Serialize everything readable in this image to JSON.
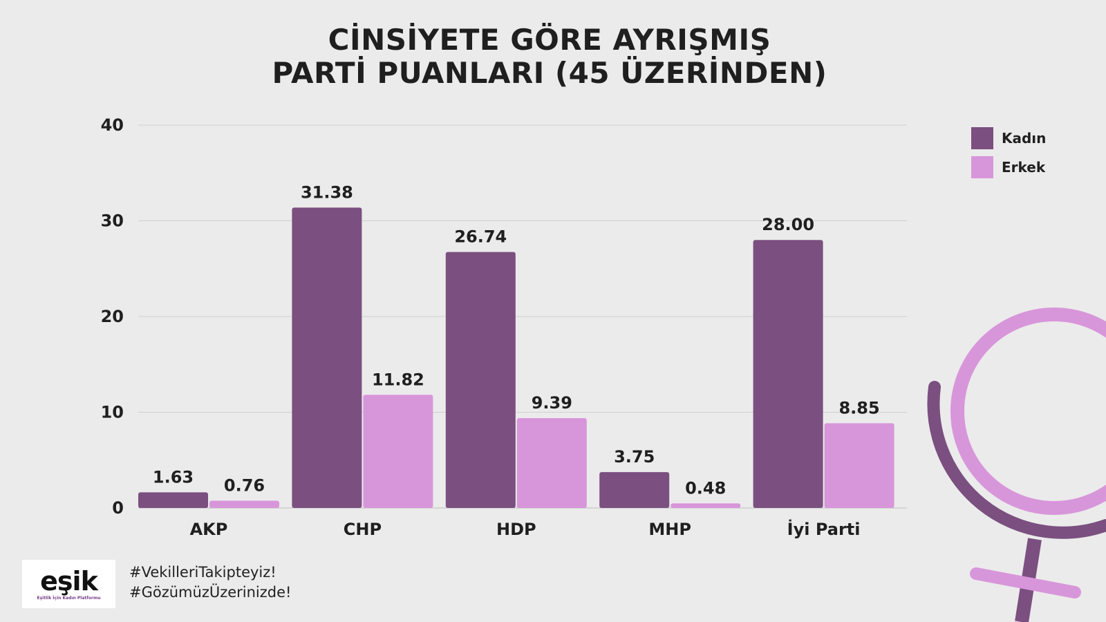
{
  "header": {
    "title_line1": "CİNSİYETE GÖRE AYRIŞMIŞ",
    "title_line2": "PARTİ PUANLARI (45 ÜZERİNDEN)"
  },
  "chart_data": {
    "type": "bar",
    "categories": [
      "AKP",
      "CHP",
      "HDP",
      "MHP",
      "İyi Parti"
    ],
    "series": [
      {
        "name": "Kadın",
        "values": [
          1.63,
          31.38,
          26.74,
          3.75,
          28.0
        ],
        "labels": [
          "1.63",
          "31.38",
          "26.74",
          "3.75",
          "28.00"
        ],
        "color": "#7b4f80"
      },
      {
        "name": "Erkek",
        "values": [
          0.76,
          11.82,
          9.39,
          0.48,
          8.85
        ],
        "labels": [
          "0.76",
          "11.82",
          "9.39",
          "0.48",
          "8.85"
        ],
        "color": "#d896da"
      }
    ],
    "yticks": [
      0,
      10,
      20,
      30,
      40
    ],
    "ylim": [
      0,
      40
    ],
    "grid": true,
    "legend_position": "top-right",
    "xlabel": "",
    "ylabel": ""
  },
  "legend": {
    "items": [
      {
        "label": "Kadın",
        "color": "#7b4f80"
      },
      {
        "label": "Erkek",
        "color": "#d896da"
      }
    ]
  },
  "footer": {
    "logo_text": "eşik",
    "logo_subtitle": "Eşitlik İçin Kadın Platformu",
    "hashtag1": "#VekilleriTakipteyiz!",
    "hashtag2": "#GözümüzÜzerinizde!"
  },
  "colors": {
    "background": "#ebebeb",
    "kadin": "#7b4f80",
    "erkek": "#d896da",
    "grid": "#cfcfcf"
  },
  "decoration": {
    "icon": "female-symbol-icon"
  }
}
